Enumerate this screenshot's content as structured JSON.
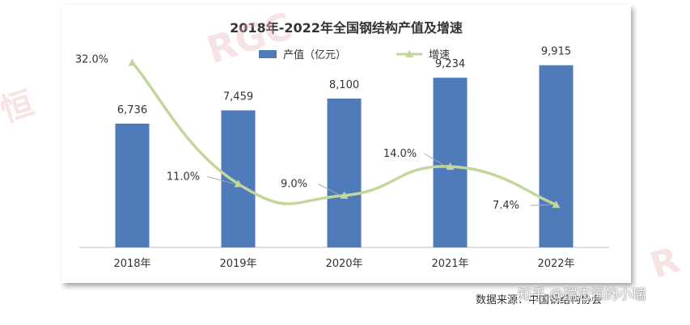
{
  "chart_data": {
    "type": "bar+line",
    "title": "2018年-2022年全国钢结构产值及增速",
    "categories": [
      "2018年",
      "2019年",
      "2020年",
      "2021年",
      "2022年"
    ],
    "series": [
      {
        "name": "产值（亿元）",
        "type": "bar",
        "values": [
          6736,
          7459,
          8100,
          9234,
          9915
        ],
        "labels": [
          "6,736",
          "7,459",
          "8,100",
          "9,234",
          "9,915"
        ],
        "color": "#4f7bbb"
      },
      {
        "name": "增速",
        "type": "line",
        "values": [
          32.0,
          11.0,
          9.0,
          14.0,
          7.4
        ],
        "labels": [
          "32.0%",
          "11.0%",
          "9.0%",
          "14.0%",
          "7.4%"
        ],
        "color": "#c3d69b"
      }
    ],
    "ylim_bar": [
      0,
      11000
    ],
    "ylim_line": [
      0,
      35
    ],
    "grid": false,
    "legend": "top-center"
  },
  "source": "数据来源：中国钢结构协会",
  "watermark": {
    "zhihu": "知乎 @瑞志恒的小瑞"
  }
}
